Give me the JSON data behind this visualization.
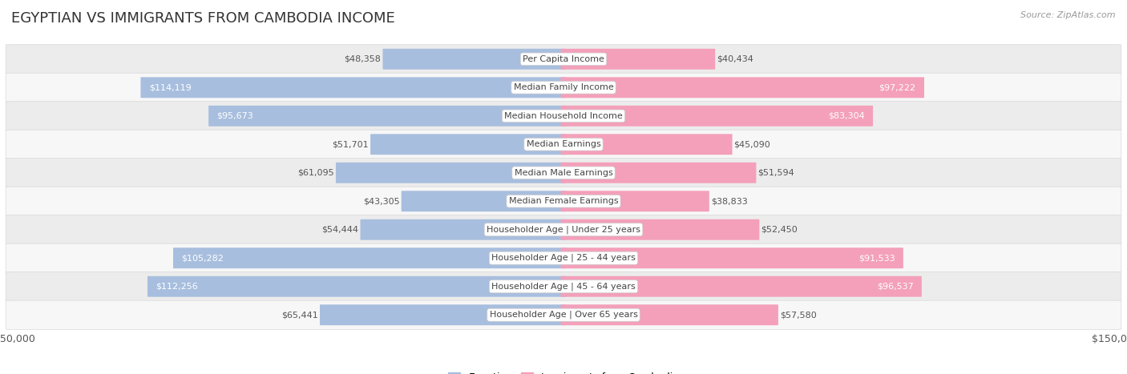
{
  "title": "EGYPTIAN VS IMMIGRANTS FROM CAMBODIA INCOME",
  "source": "Source: ZipAtlas.com",
  "categories": [
    "Per Capita Income",
    "Median Family Income",
    "Median Household Income",
    "Median Earnings",
    "Median Male Earnings",
    "Median Female Earnings",
    "Householder Age | Under 25 years",
    "Householder Age | 25 - 44 years",
    "Householder Age | 45 - 64 years",
    "Householder Age | Over 65 years"
  ],
  "egyptian": [
    48358,
    114119,
    95673,
    51701,
    61095,
    43305,
    54444,
    105282,
    112256,
    65441
  ],
  "cambodia": [
    40434,
    97222,
    83304,
    45090,
    51594,
    38833,
    52450,
    91533,
    96537,
    57580
  ],
  "max_val": 150000,
  "egyptian_color": "#a8bede",
  "cambodia_color": "#f4a0ba",
  "egyptian_color_dark": "#7ba7d4",
  "cambodia_color_dark": "#f07098",
  "bar_height": 0.72,
  "row_bg_light": "#f7f7f7",
  "row_bg_dark": "#ececec",
  "row_border": "#d8d8d8",
  "label_inside_threshold_eg": 80000,
  "label_inside_threshold_cam": 80000,
  "text_dark": "#555555",
  "text_white": "#ffffff",
  "title_color": "#333333",
  "title_fontsize": 13,
  "source_color": "#999999",
  "tick_label_fontsize": 9,
  "bar_label_fontsize": 8,
  "cat_label_fontsize": 8
}
